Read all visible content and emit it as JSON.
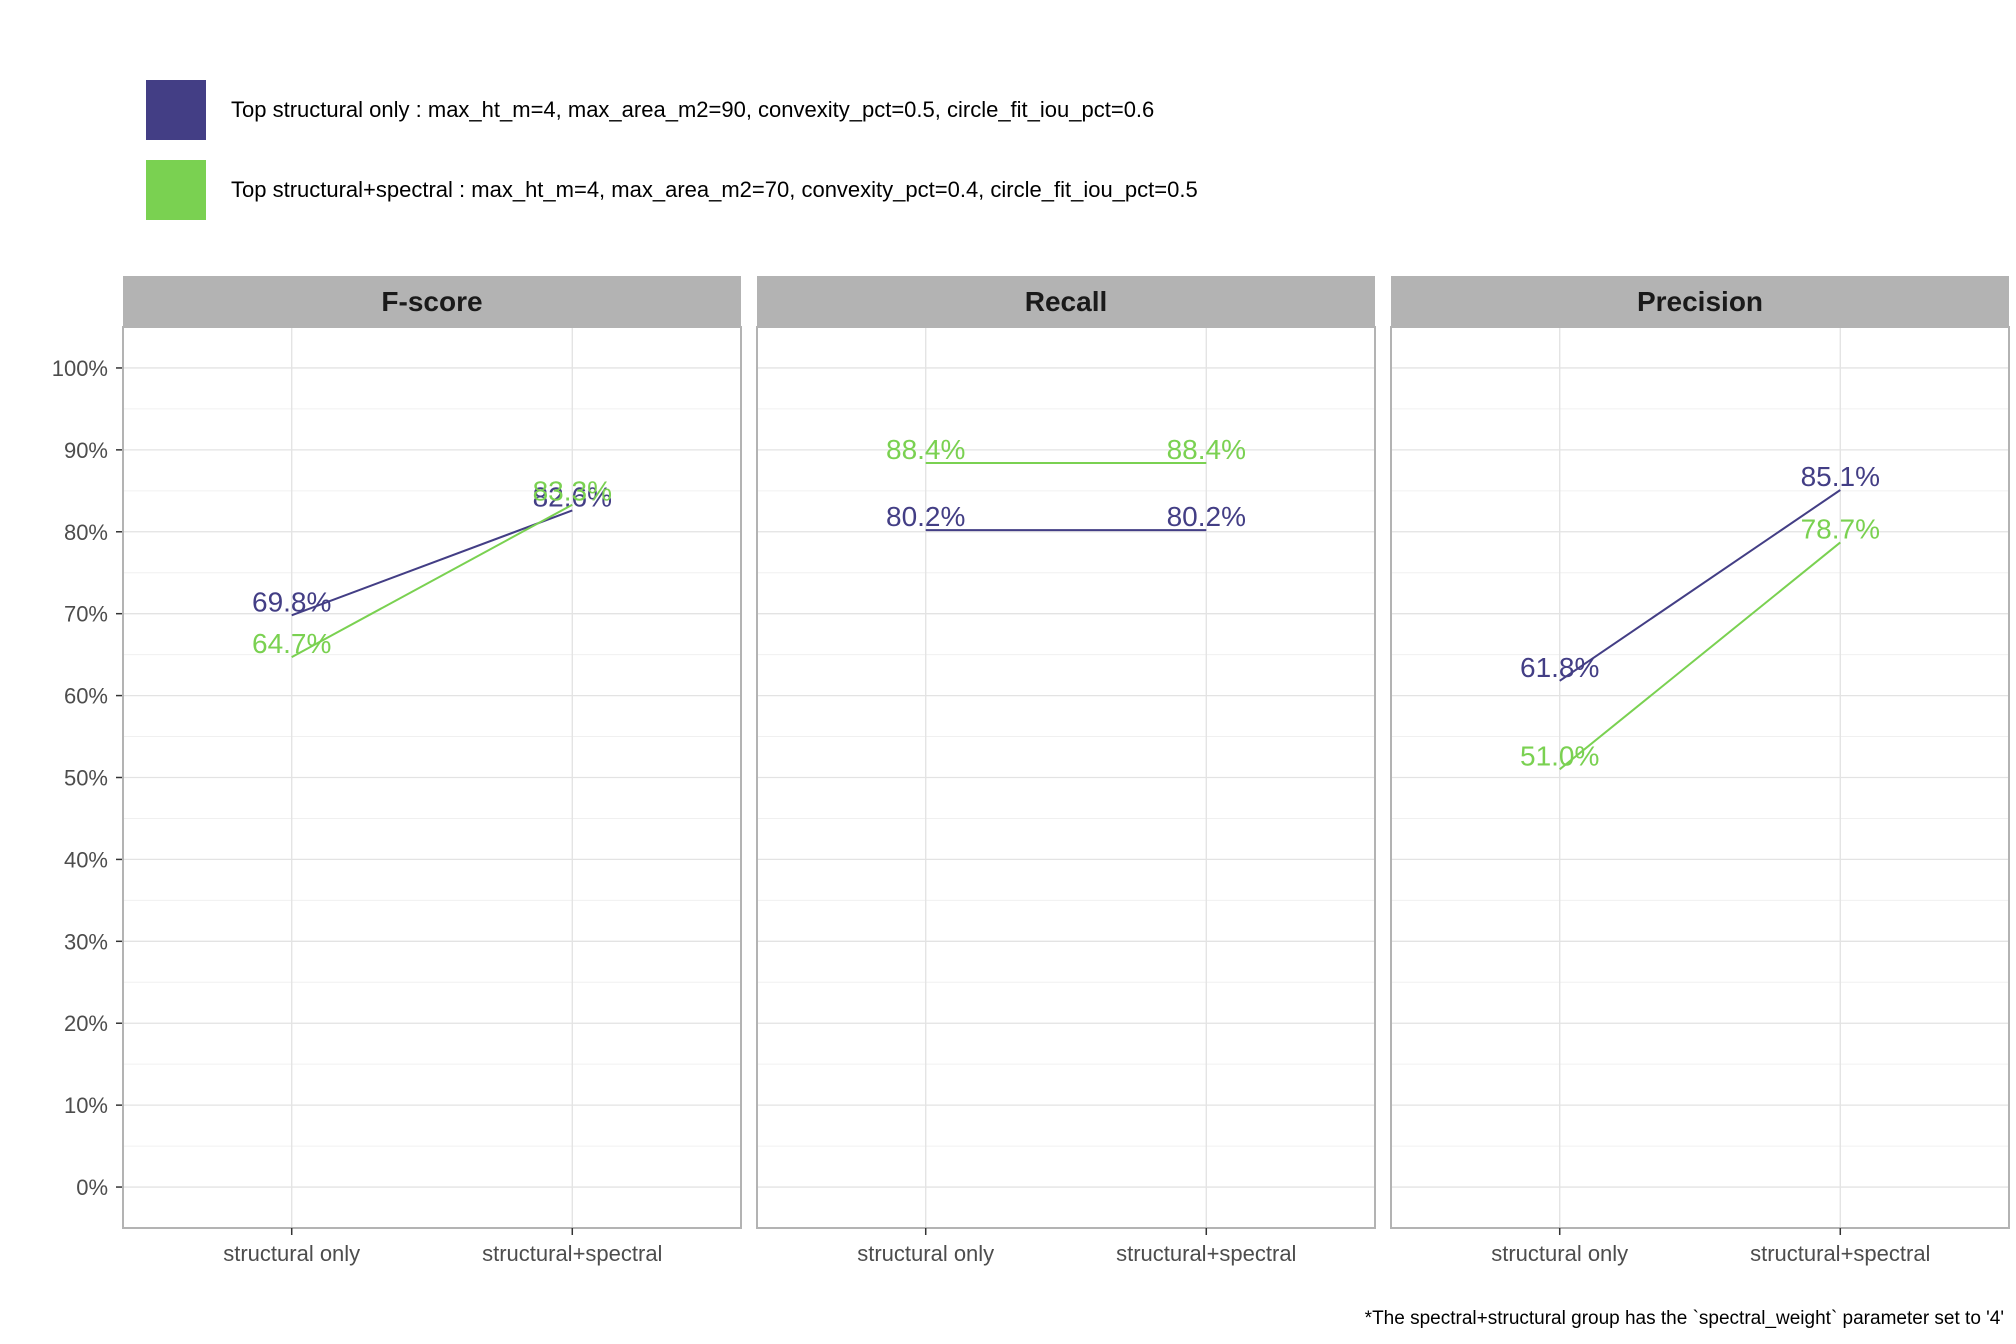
{
  "legend": {
    "items": [
      {
        "text": "Top structural only : max_ht_m=4, max_area_m2=90, convexity_pct=0.5, circle_fit_iou_pct=0.6",
        "color": "#433E85"
      },
      {
        "text": "Top structural+spectral : max_ht_m=4, max_area_m2=70, convexity_pct=0.4, circle_fit_iou_pct=0.5",
        "color": "#7AD151"
      }
    ]
  },
  "footnote": "*The spectral+structural group has the `spectral_weight` parameter set to '4'",
  "chart_data": {
    "type": "line",
    "categories": [
      "structural only",
      "structural+spectral"
    ],
    "y_ticks": [
      "0%",
      "10%",
      "20%",
      "30%",
      "40%",
      "50%",
      "60%",
      "70%",
      "80%",
      "90%",
      "100%"
    ],
    "ylim": [
      -5,
      105
    ],
    "grid": true,
    "legend_position": "top-left",
    "panels": [
      {
        "title": "F-score",
        "series": [
          {
            "values": [
              69.8,
              82.6
            ],
            "labels": [
              "69.8%",
              "82.6%"
            ],
            "color": "#433E85"
          },
          {
            "values": [
              64.7,
              83.3
            ],
            "labels": [
              "64.7%",
              "83.3%"
            ],
            "color": "#7AD151"
          }
        ]
      },
      {
        "title": "Recall",
        "series": [
          {
            "values": [
              80.2,
              80.2
            ],
            "labels": [
              "80.2%",
              "80.2%"
            ],
            "color": "#433E85"
          },
          {
            "values": [
              88.4,
              88.4
            ],
            "labels": [
              "88.4%",
              "88.4%"
            ],
            "color": "#7AD151"
          }
        ]
      },
      {
        "title": "Precision",
        "series": [
          {
            "values": [
              61.8,
              85.1
            ],
            "labels": [
              "61.8%",
              "85.1%"
            ],
            "color": "#433E85"
          },
          {
            "values": [
              51.0,
              78.7
            ],
            "labels": [
              "51.0%",
              "78.7%"
            ],
            "color": "#7AD151"
          }
        ]
      }
    ]
  }
}
